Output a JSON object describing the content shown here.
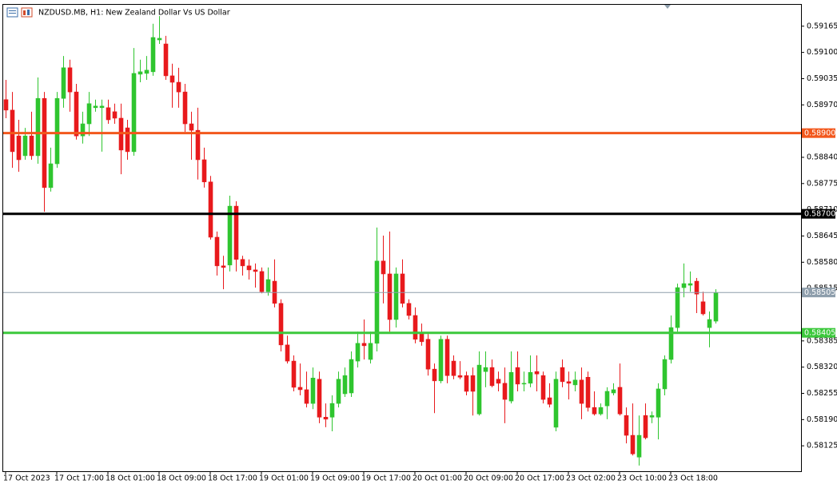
{
  "chart_data": {
    "type": "candlestick",
    "title": "NZDUSD.MB, H1:  New Zealand Dollar Vs US Dollar",
    "up_color": "#2fc52f",
    "down_color": "#e8191c",
    "xlim": [
      -0.5,
      124.375
    ],
    "xticks": [
      {
        "value": 0,
        "label": "17 Oct 2023"
      },
      {
        "value": 8,
        "label": "17 Oct 17:00"
      },
      {
        "value": 16,
        "label": "18 Oct 01:00"
      },
      {
        "value": 24,
        "label": "18 Oct 09:00"
      },
      {
        "value": 32,
        "label": "18 Oct 17:00"
      },
      {
        "value": 40,
        "label": "19 Oct 01:00"
      },
      {
        "value": 48,
        "label": "19 Oct 09:00"
      },
      {
        "value": 56,
        "label": "19 Oct 17:00"
      },
      {
        "value": 64,
        "label": "20 Oct 01:00"
      },
      {
        "value": 72,
        "label": "20 Oct 09:00"
      },
      {
        "value": 80,
        "label": "20 Oct 17:00"
      },
      {
        "value": 88,
        "label": "23 Oct 02:00"
      },
      {
        "value": 96,
        "label": "23 Oct 10:00"
      },
      {
        "value": 104,
        "label": "23 Oct 18:00"
      }
    ],
    "ylim": [
      0.58062,
      0.5922
    ],
    "yticks": [
      0.59165,
      {
        "value": 0.591,
        "label": "0.59100"
      },
      0.59035,
      {
        "value": 0.5897,
        "label": "0.58970"
      },
      {
        "value": 0.5884,
        "label": "0.58840"
      },
      0.58775,
      {
        "value": 0.5871,
        "label": "0.58710"
      },
      0.58645,
      {
        "value": 0.5858,
        "label": "0.58580"
      },
      0.58515,
      0.58385,
      {
        "value": 0.5832,
        "label": "0.58320"
      },
      0.58255,
      {
        "value": 0.5819,
        "label": "0.58190"
      },
      0.58125
    ],
    "levels": [
      {
        "value": 0.589,
        "label": "0.58900",
        "color": "#f2571c"
      },
      {
        "value": 0.587,
        "label": "0.58700",
        "color": "#000000"
      },
      {
        "value": 0.58405,
        "label": "0.58405",
        "color": "#3cc83c"
      }
    ],
    "bid": {
      "value": 0.58505,
      "label": "0.58505",
      "color": "#8e9eac"
    },
    "open": [
      0.58983,
      0.58957,
      0.58893,
      0.58844,
      0.58893,
      0.58844,
      0.58986,
      0.58765,
      0.58824,
      0.58986,
      0.59062,
      0.59002,
      0.58893,
      0.58923,
      0.58963,
      0.58963,
      0.58963,
      0.58953,
      0.58937,
      0.58913,
      0.58854,
      0.59046,
      0.59048,
      0.59052,
      0.59131,
      0.59121,
      0.59042,
      0.59026,
      0.59002,
      0.58923,
      0.58907,
      0.58834,
      0.58779,
      0.58642,
      0.58571,
      0.58573,
      0.58719,
      0.58587,
      0.58571,
      0.58561,
      0.58557,
      0.58507,
      0.58533,
      0.58478,
      0.58375,
      0.58335,
      0.5827,
      0.58264,
      0.5823,
      0.5829,
      0.58196,
      0.58196,
      0.5823,
      0.58254,
      0.58256,
      0.58335,
      0.58379,
      0.58339,
      0.58379,
      0.58583,
      0.58551,
      0.58438,
      0.58551,
      0.58478,
      0.58448,
      0.58402,
      0.58389,
      0.58315,
      0.58286,
      0.58389,
      0.58335,
      0.58299,
      0.58299,
      0.58299,
      0.58204,
      0.58309,
      0.58319,
      0.5829,
      0.5828,
      0.58236,
      0.58319,
      0.58278,
      0.5828,
      0.58309,
      0.58299,
      0.58244,
      0.58171,
      0.58319,
      0.58284,
      0.58276,
      0.58288,
      0.58295,
      0.5822,
      0.58204,
      0.58224,
      0.58256,
      0.5827,
      0.582,
      0.58151,
      0.58097,
      0.582,
      0.58196,
      0.58196,
      0.58266,
      0.58339,
      0.58418,
      0.58517,
      0.58523,
      0.58533,
      0.58482,
      0.58418,
      0.58434
    ],
    "high": [
      0.59032,
      0.59002,
      0.58933,
      0.58913,
      0.58953,
      0.59038,
      0.59002,
      0.58864,
      0.59002,
      0.59091,
      0.59082,
      0.59022,
      0.58953,
      0.59002,
      0.58983,
      0.58983,
      0.58983,
      0.58973,
      0.58973,
      0.58933,
      0.59111,
      0.59082,
      0.59091,
      0.59171,
      0.5919,
      0.59141,
      0.59072,
      0.59062,
      0.59022,
      0.58953,
      0.58963,
      0.58864,
      0.58794,
      0.58656,
      0.58596,
      0.58745,
      0.58731,
      0.58596,
      0.58587,
      0.58577,
      0.58567,
      0.58567,
      0.58587,
      0.58488,
      0.58398,
      0.58349,
      0.58329,
      0.58309,
      0.58319,
      0.58309,
      0.5823,
      0.5825,
      0.58309,
      0.58319,
      0.58359,
      0.58408,
      0.58438,
      0.58408,
      0.58666,
      0.58646,
      0.58656,
      0.58567,
      0.58587,
      0.58488,
      0.58468,
      0.58428,
      0.58402,
      0.58329,
      0.58398,
      0.58398,
      0.58349,
      0.58335,
      0.58309,
      0.58319,
      0.58359,
      0.58359,
      0.58339,
      0.58309,
      0.58319,
      0.58359,
      0.58359,
      0.58309,
      0.58349,
      0.58349,
      0.58309,
      0.5828,
      0.58309,
      0.58339,
      0.58309,
      0.58309,
      0.58319,
      0.58309,
      0.5826,
      0.5823,
      0.5827,
      0.5828,
      0.58329,
      0.5822,
      0.5823,
      0.582,
      0.5823,
      0.5821,
      0.5828,
      0.58349,
      0.58448,
      0.58527,
      0.58577,
      0.58557,
      0.58541,
      0.58507,
      0.58458,
      0.58513
    ],
    "low": [
      0.58937,
      0.58814,
      0.58804,
      0.58834,
      0.58834,
      0.58824,
      0.58705,
      0.58755,
      0.58814,
      0.58963,
      0.58953,
      0.58884,
      0.58874,
      0.58893,
      0.58953,
      0.58854,
      0.58923,
      0.58923,
      0.58798,
      0.58834,
      0.58844,
      0.59026,
      0.59032,
      0.59042,
      0.59121,
      0.59032,
      0.58963,
      0.58963,
      0.58903,
      0.58834,
      0.58785,
      0.58765,
      0.58636,
      0.58547,
      0.58513,
      0.58557,
      0.58557,
      0.58547,
      0.58537,
      0.58517,
      0.58503,
      0.58497,
      0.58468,
      0.58359,
      0.58329,
      0.5826,
      0.5825,
      0.5822,
      0.58216,
      0.58181,
      0.58171,
      0.58161,
      0.5822,
      0.58246,
      0.58246,
      0.58319,
      0.58339,
      0.58329,
      0.58359,
      0.58478,
      0.58408,
      0.58418,
      0.58468,
      0.58438,
      0.58379,
      0.58373,
      0.58299,
      0.58206,
      0.5828,
      0.5828,
      0.5829,
      0.5829,
      0.5825,
      0.582,
      0.582,
      0.5827,
      0.5827,
      0.5826,
      0.58181,
      0.5823,
      0.5826,
      0.5826,
      0.5827,
      0.5826,
      0.5823,
      0.5822,
      0.58161,
      0.5827,
      0.5824,
      0.5826,
      0.58191,
      0.5821,
      0.582,
      0.582,
      0.58191,
      0.5825,
      0.582,
      0.58131,
      0.58101,
      0.58076,
      0.58141,
      0.58181,
      0.58141,
      0.5825,
      0.58329,
      0.58408,
      0.58493,
      0.58507,
      0.58454,
      0.58448,
      0.58369,
      0.58428
    ],
    "close": [
      0.58957,
      0.58854,
      0.58834,
      0.58893,
      0.58844,
      0.58986,
      0.58765,
      0.58824,
      0.58986,
      0.59062,
      0.59002,
      0.58893,
      0.58923,
      0.58973,
      0.58967,
      0.58967,
      0.58933,
      0.58937,
      0.58858,
      0.58854,
      0.59048,
      0.59052,
      0.59056,
      0.59137,
      0.59135,
      0.59042,
      0.59026,
      0.59002,
      0.58923,
      0.58907,
      0.58834,
      0.58779,
      0.58642,
      0.58571,
      0.58567,
      0.58719,
      0.58587,
      0.58571,
      0.58561,
      0.58557,
      0.58507,
      0.58537,
      0.58478,
      0.58375,
      0.58335,
      0.5827,
      0.58264,
      0.5823,
      0.58293,
      0.58196,
      0.58191,
      0.5823,
      0.5829,
      0.58299,
      0.58339,
      0.58379,
      0.58373,
      0.58379,
      0.58583,
      0.58551,
      0.58438,
      0.58551,
      0.58478,
      0.58448,
      0.58389,
      0.58383,
      0.58315,
      0.58286,
      0.58389,
      0.58299,
      0.58299,
      0.58295,
      0.5826,
      0.5826,
      0.58325,
      0.58319,
      0.58274,
      0.5828,
      0.5824,
      0.58307,
      0.58278,
      0.5828,
      0.58307,
      0.58303,
      0.5824,
      0.58228,
      0.5829,
      0.58284,
      0.5828,
      0.58288,
      0.5823,
      0.5822,
      0.58204,
      0.5822,
      0.5826,
      0.58264,
      0.58204,
      0.58151,
      0.58105,
      0.58151,
      0.58145,
      0.582,
      0.58266,
      0.58339,
      0.58418,
      0.58517,
      0.58527,
      0.58527,
      0.58501,
      0.58452,
      0.58438,
      0.58505
    ]
  }
}
